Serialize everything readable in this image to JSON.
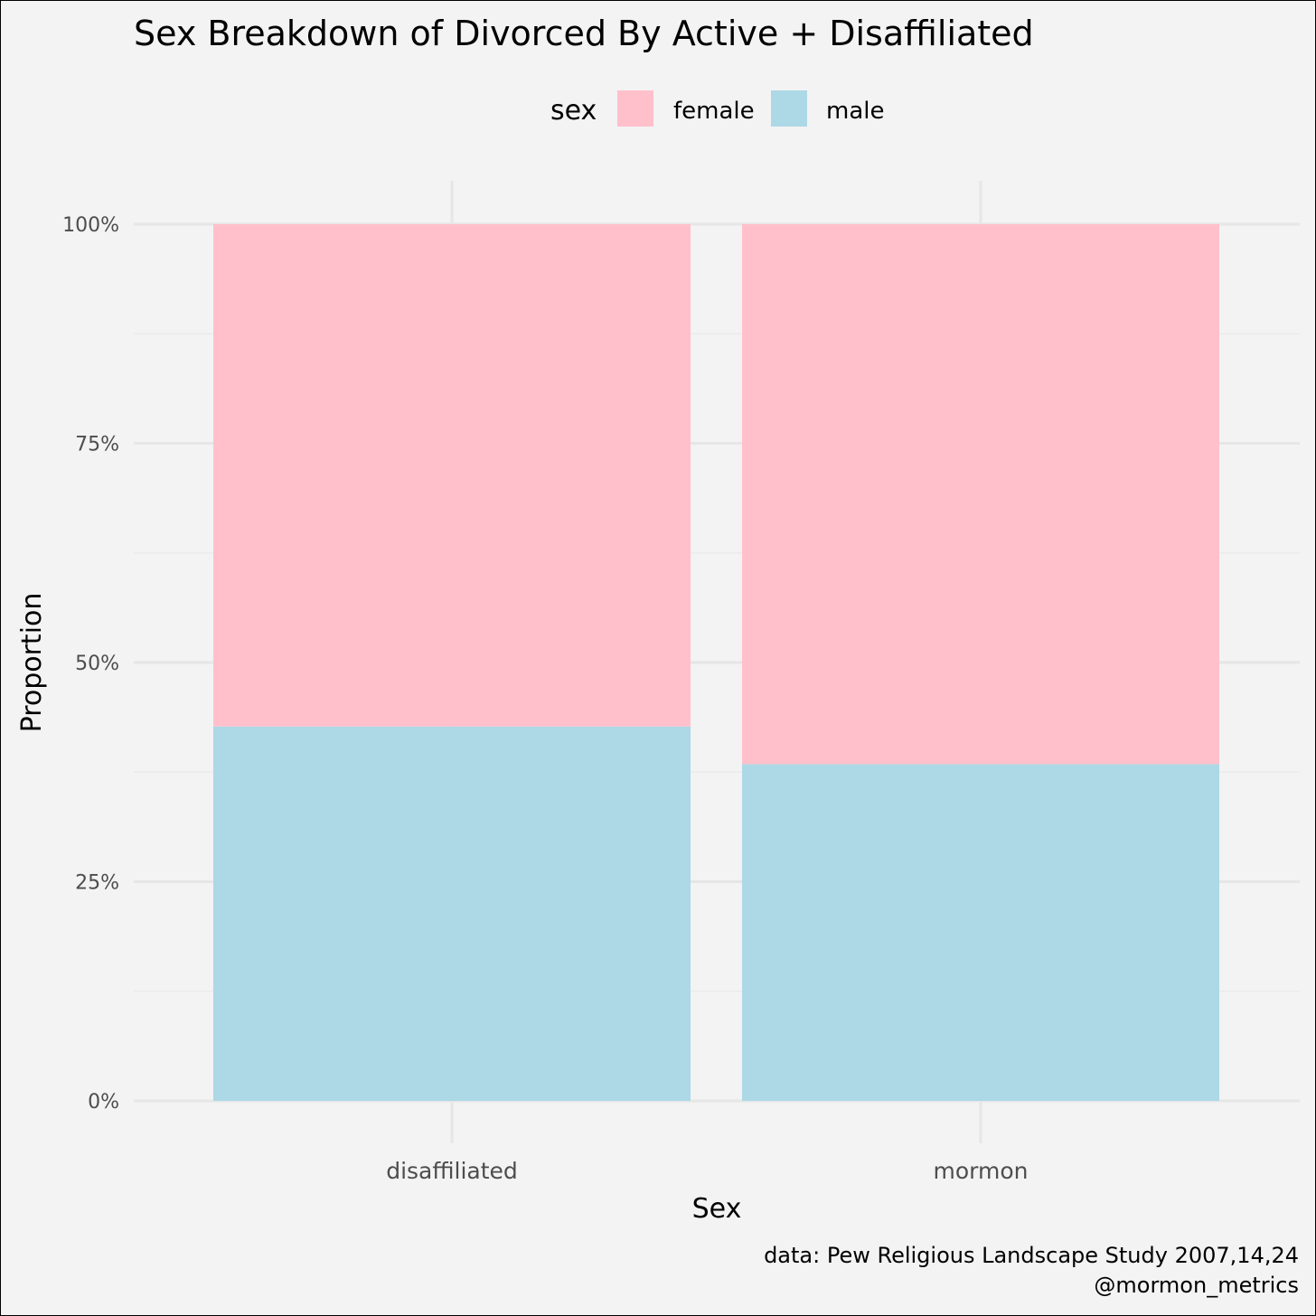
{
  "chart_data": {
    "type": "bar",
    "stacked": true,
    "title": "Sex Breakdown of Divorced By Active + Disaffiliated",
    "xlabel": "Sex",
    "ylabel": "Proportion",
    "categories": [
      "disaffiliated",
      "mormon"
    ],
    "series": [
      {
        "name": "female",
        "color": "#ffc0cb",
        "values": [
          0.573,
          0.616
        ]
      },
      {
        "name": "male",
        "color": "#add8e6",
        "values": [
          0.427,
          0.384
        ]
      }
    ],
    "ylim": [
      0,
      1
    ],
    "yticks": [
      0,
      0.25,
      0.5,
      0.75,
      1
    ],
    "ytick_labels": [
      "0%",
      "25%",
      "50%",
      "75%",
      "100%"
    ],
    "legend": {
      "title": "sex",
      "position": "top"
    },
    "grid": true,
    "caption": [
      "data: Pew Religious Landscape Study 2007,14,24",
      "@mormon_metrics"
    ]
  }
}
